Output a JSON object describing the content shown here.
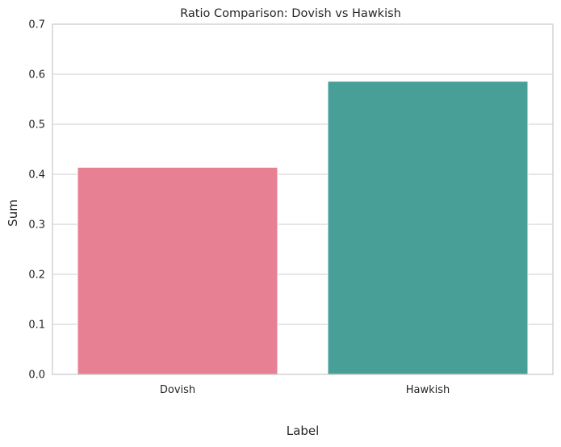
{
  "chart_data": {
    "type": "bar",
    "title": "Ratio Comparison: Dovish vs Hawkish",
    "xlabel": "Label",
    "ylabel": "Sum",
    "categories": [
      "Dovish",
      "Hawkish"
    ],
    "values": [
      0.414,
      0.586
    ],
    "colors": [
      "#e88094",
      "#489f98"
    ],
    "ylim": [
      0,
      0.7
    ],
    "yticks": [
      "0.0",
      "0.1",
      "0.2",
      "0.3",
      "0.4",
      "0.5",
      "0.6",
      "0.7"
    ],
    "grid": true,
    "grid_color": "#cccccc",
    "legend": "none"
  }
}
